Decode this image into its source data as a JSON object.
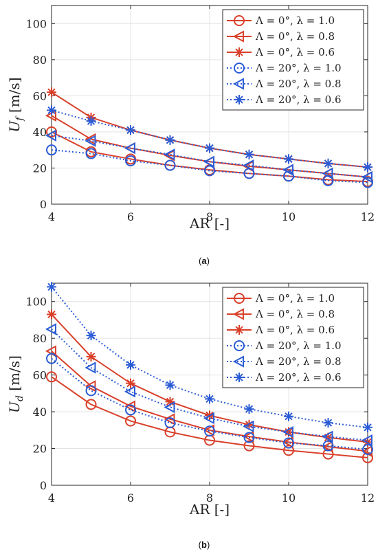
{
  "chart_data": [
    {
      "type": "line",
      "caption": "(a)",
      "xlabel": "AR [-]",
      "ylabel_main": "U",
      "ylabel_sub": "f",
      "ylabel_unit": " [m/s]",
      "xlim": [
        4,
        12
      ],
      "ylim": [
        0,
        110
      ],
      "xticks": [
        "4",
        "6",
        "8",
        "10",
        "12"
      ],
      "yticks": [
        "0",
        "20",
        "40",
        "60",
        "80",
        "100"
      ],
      "grid": true,
      "legend_position": "top-right",
      "x": [
        4,
        5,
        6,
        7,
        8,
        9,
        10,
        11,
        12
      ],
      "series": [
        {
          "name": "Λ = 0°,   λ = 1.0",
          "color": "#d9402a",
          "marker": "circle",
          "dash": "solid",
          "values": [
            40,
            29,
            25,
            21.5,
            19,
            17,
            15.5,
            13.5,
            12.5
          ]
        },
        {
          "name": "Λ = 0°,   λ = 0.8",
          "color": "#d9402a",
          "marker": "triangle-left",
          "dash": "solid",
          "values": [
            49,
            36,
            31,
            27,
            23.5,
            21,
            19,
            17,
            15
          ]
        },
        {
          "name": "Λ = 0°,   λ = 0.6",
          "color": "#d9402a",
          "marker": "asterisk",
          "dash": "solid",
          "values": [
            62,
            48,
            41,
            35.5,
            31,
            27.5,
            25,
            22.5,
            20.5
          ]
        },
        {
          "name": "Λ = 20°, λ = 1.0",
          "color": "#2b5cd6",
          "marker": "circle",
          "dash": "dotted",
          "values": [
            30,
            28,
            24,
            21.5,
            18.5,
            17,
            15.5,
            13,
            12
          ]
        },
        {
          "name": "Λ = 20°, λ = 0.8",
          "color": "#2b5cd6",
          "marker": "triangle-left",
          "dash": "dotted",
          "values": [
            38,
            35,
            31,
            27.5,
            23.5,
            21.5,
            19,
            17,
            15
          ]
        },
        {
          "name": "Λ = 20°, λ = 0.6",
          "color": "#2b5cd6",
          "marker": "asterisk",
          "dash": "dotted",
          "values": [
            52,
            46,
            41,
            35.5,
            31,
            27.5,
            25,
            22.5,
            20.5
          ]
        }
      ]
    },
    {
      "type": "line",
      "caption": "(b)",
      "xlabel": "AR [-]",
      "ylabel_main": "U",
      "ylabel_sub": "d",
      "ylabel_unit": " [m/s]",
      "xlim": [
        4,
        12
      ],
      "ylim": [
        0,
        110
      ],
      "xticks": [
        "4",
        "6",
        "8",
        "10",
        "12"
      ],
      "yticks": [
        "0",
        "20",
        "40",
        "60",
        "80",
        "100"
      ],
      "grid": true,
      "legend_position": "top-right",
      "x": [
        4,
        5,
        6,
        7,
        8,
        9,
        10,
        11,
        12
      ],
      "series": [
        {
          "name": "Λ = 0°,   λ = 1.0",
          "color": "#d9402a",
          "marker": "circle",
          "dash": "solid",
          "values": [
            59,
            44,
            35,
            29,
            24.5,
            21.5,
            19,
            17,
            15
          ]
        },
        {
          "name": "Λ = 0°,   λ = 0.8",
          "color": "#d9402a",
          "marker": "triangle-left",
          "dash": "solid",
          "values": [
            73,
            54,
            43,
            36,
            30,
            26.5,
            23.5,
            21,
            18.5
          ]
        },
        {
          "name": "Λ = 0°,   λ = 0.6",
          "color": "#d9402a",
          "marker": "asterisk",
          "dash": "solid",
          "values": [
            93,
            70,
            55.5,
            45.5,
            38,
            33,
            29,
            26,
            23.5
          ]
        },
        {
          "name": "Λ = 20°, λ = 1.0",
          "color": "#2b5cd6",
          "marker": "circle",
          "dash": "dotted",
          "values": [
            69,
            51.5,
            41,
            34,
            29.5,
            26,
            23,
            21.5,
            19.5
          ]
        },
        {
          "name": "Λ = 20°, λ = 0.8",
          "color": "#2b5cd6",
          "marker": "triangle-left",
          "dash": "dotted",
          "values": [
            85,
            64,
            51,
            42.5,
            36.5,
            32,
            29,
            26.5,
            24.5
          ]
        },
        {
          "name": "Λ = 20°, λ = 0.6",
          "color": "#2b5cd6",
          "marker": "asterisk",
          "dash": "dotted",
          "values": [
            108,
            81.5,
            65.5,
            54.5,
            47,
            41.5,
            37.5,
            34,
            31.5
          ]
        }
      ]
    }
  ]
}
